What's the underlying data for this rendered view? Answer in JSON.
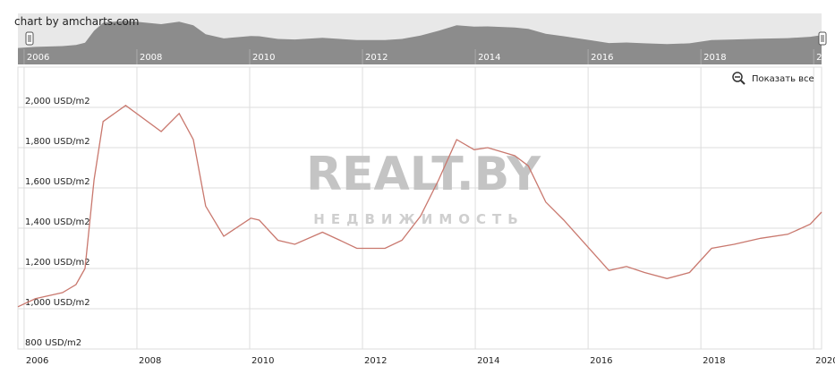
{
  "credit": "chart by amcharts.com",
  "zoom_button": "Показать все",
  "watermark": {
    "title": "REALT.BY",
    "subtitle": "НЕДВИЖИМОСТЬ"
  },
  "chart_data": {
    "type": "line",
    "color": "#c9786e",
    "x": [
      2005.89,
      2006.2,
      2006.68,
      2006.92,
      2007.08,
      2007.24,
      2007.4,
      2007.8,
      2008.43,
      2008.75,
      2009.0,
      2009.22,
      2009.54,
      2010.02,
      2010.17,
      2010.5,
      2010.8,
      2011.29,
      2011.6,
      2011.9,
      2012.4,
      2012.7,
      2013.03,
      2013.35,
      2013.67,
      2013.98,
      2014.22,
      2014.7,
      2014.94,
      2015.25,
      2015.57,
      2016.05,
      2016.37,
      2016.68,
      2017.0,
      2017.4,
      2017.8,
      2018.19,
      2018.59,
      2019.06,
      2019.54,
      2019.94,
      2020.14
    ],
    "values": [
      1010,
      1050,
      1080,
      1120,
      1200,
      1640,
      1930,
      2010,
      1880,
      1970,
      1840,
      1510,
      1360,
      1450,
      1440,
      1340,
      1320,
      1380,
      1340,
      1300,
      1300,
      1340,
      1460,
      1640,
      1840,
      1790,
      1800,
      1760,
      1710,
      1530,
      1440,
      1290,
      1190,
      1210,
      1180,
      1150,
      1180,
      1300,
      1320,
      1350,
      1370,
      1420,
      1480
    ],
    "xlim": [
      2005.89,
      2020.14
    ],
    "xticks": [
      2006,
      2008,
      2010,
      2012,
      2014,
      2016,
      2018,
      2020
    ],
    "ylim": [
      800,
      2200
    ],
    "yticks": [
      {
        "value": 800,
        "label": "800 USD/m2"
      },
      {
        "value": 1000,
        "label": "1,000 USD/m2"
      },
      {
        "value": 1200,
        "label": "1,200 USD/m2"
      },
      {
        "value": 1400,
        "label": "1,400 USD/m2"
      },
      {
        "value": 1600,
        "label": "1,600 USD/m2"
      },
      {
        "value": 1800,
        "label": "1,800 USD/m2"
      },
      {
        "value": 2000,
        "label": "2,000 USD/m2"
      }
    ],
    "grid": true
  }
}
